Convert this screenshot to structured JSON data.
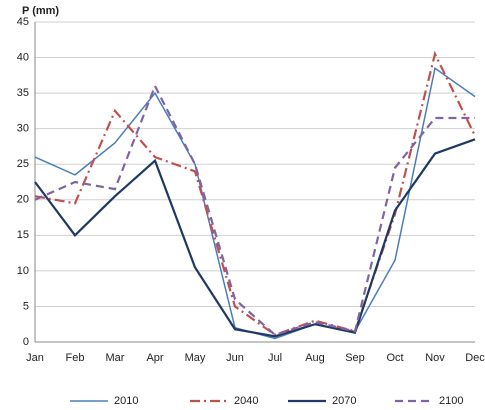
{
  "chart_data": {
    "type": "line",
    "y_label": "P (mm)",
    "categories": [
      "Jan",
      "Feb",
      "Mar",
      "Apr",
      "May",
      "Jun",
      "Jul",
      "Aug",
      "Sep",
      "Oct",
      "Nov",
      "Dec"
    ],
    "series": [
      {
        "name": "2010",
        "color": "#4a7ebb",
        "style": "solid",
        "values": [
          26,
          23.5,
          28,
          35,
          25,
          2,
          0.5,
          2.5,
          1.5,
          11.5,
          38.5,
          34.5
        ]
      },
      {
        "name": "2040",
        "color": "#c0504d",
        "style": "dash-dot",
        "values": [
          20.5,
          19.5,
          32.5,
          26,
          24,
          5,
          1,
          3,
          1.5,
          18,
          40.5,
          29
        ]
      },
      {
        "name": "2070",
        "color": "#1f3864",
        "style": "solid-thick",
        "values": [
          22.5,
          15,
          20.5,
          25.5,
          10.5,
          1.8,
          0.8,
          2.5,
          1.3,
          18.5,
          26.5,
          28.5
        ]
      },
      {
        "name": "2100",
        "color": "#8064a2",
        "style": "dash",
        "values": [
          20,
          22.5,
          21.5,
          36,
          25,
          6,
          1,
          2.8,
          1.5,
          24.5,
          31.5,
          31.5
        ]
      }
    ],
    "ylim": [
      0,
      45
    ],
    "yticks": [
      0,
      5,
      10,
      15,
      20,
      25,
      30,
      35,
      40,
      45
    ],
    "grid": true,
    "legend": "bottom"
  }
}
